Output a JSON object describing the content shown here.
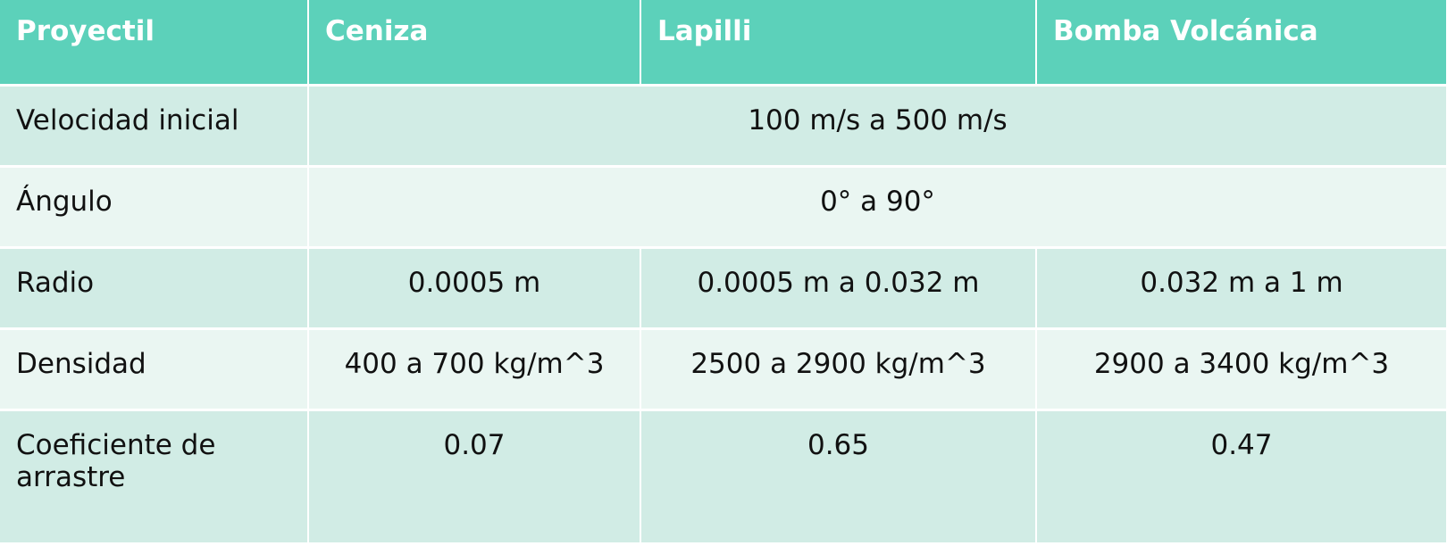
{
  "table": {
    "headers": [
      "Proyectil",
      "Ceniza",
      "Lapilli",
      "Bomba Volcánica"
    ],
    "rows": [
      {
        "label": "Velocidad inicial",
        "merged": "100 m/s a 500 m/s"
      },
      {
        "label": "Ángulo",
        "merged": "0° a 90°"
      },
      {
        "label": "Radio",
        "cells": [
          "0.0005 m",
          "0.0005 m a 0.032 m",
          "0.032 m a 1 m"
        ]
      },
      {
        "label": "Densidad",
        "cells": [
          "400 a 700 kg/m^3",
          "2500 a 2900 kg/m^3",
          "2900 a 3400 kg/m^3"
        ]
      },
      {
        "label": "Coeficiente de arrastre",
        "cells": [
          "0.07",
          "0.65",
          "0.47"
        ]
      }
    ]
  },
  "colors": {
    "header_bg": "#5cd1ba",
    "band_dark": "#d1ece5",
    "band_light": "#eaf6f2"
  }
}
